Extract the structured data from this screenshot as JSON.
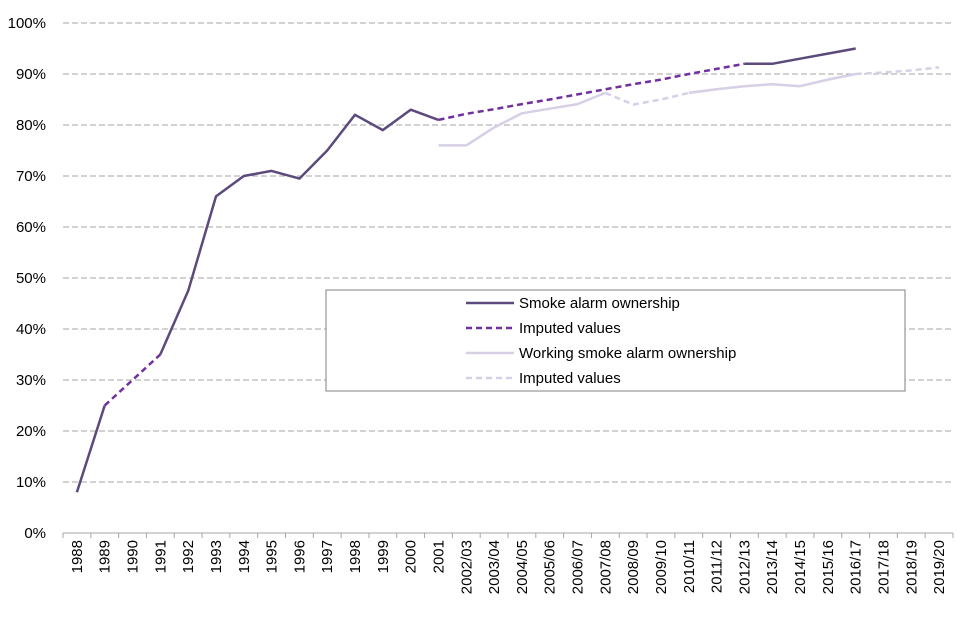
{
  "chart_data": {
    "type": "line",
    "title": "",
    "xlabel": "",
    "ylabel": "",
    "ylim": [
      0,
      100
    ],
    "y_ticks": [
      "0%",
      "10%",
      "20%",
      "30%",
      "40%",
      "50%",
      "60%",
      "70%",
      "80%",
      "90%",
      "100%"
    ],
    "gridlines": "horizontal dashed",
    "categories": [
      "1988",
      "1989",
      "1990",
      "1991",
      "1992",
      "1993",
      "1994",
      "1995",
      "1996",
      "1997",
      "1998",
      "1999",
      "2000",
      "2001",
      "2002/03",
      "2003/04",
      "2004/05",
      "2005/06",
      "2006/07",
      "2007/08",
      "2008/09",
      "2009/10",
      "2010/11",
      "2011/12",
      "2012/13",
      "2013/14",
      "2014/15",
      "2015/16",
      "2016/17",
      "2017/18",
      "2018/19",
      "2019/20"
    ],
    "legend_position": "center-right",
    "series": [
      {
        "name": "Smoke alarm ownership",
        "style": "solid",
        "color": "#5b4a7b",
        "values": [
          8,
          25,
          null,
          35,
          47.5,
          66,
          70,
          71,
          69.5,
          75,
          82,
          79,
          83,
          81,
          null,
          null,
          null,
          null,
          null,
          null,
          null,
          null,
          null,
          null,
          92,
          92,
          93,
          94,
          95,
          null,
          null,
          null
        ]
      },
      {
        "name": "Imputed values",
        "style": "dashed",
        "color": "#7030a0",
        "values": [
          null,
          25,
          30,
          35,
          null,
          null,
          null,
          null,
          null,
          null,
          null,
          null,
          null,
          81,
          82.2,
          83.1,
          84.1,
          85,
          86,
          87,
          88,
          88.9,
          90,
          91,
          92,
          null,
          null,
          null,
          null,
          null,
          null,
          null
        ]
      },
      {
        "name": "Working smoke alarm ownership",
        "style": "solid",
        "color": "#d6cfe6",
        "values": [
          null,
          null,
          null,
          null,
          null,
          null,
          null,
          null,
          null,
          null,
          null,
          null,
          null,
          76,
          76,
          79.5,
          82.3,
          83.2,
          84.1,
          86.3,
          null,
          null,
          86.3,
          87,
          87.6,
          88,
          87.6,
          88.9,
          90,
          null,
          null,
          null
        ]
      },
      {
        "name": "Imputed values",
        "style": "dashed",
        "color": "#d6cfe6",
        "values": [
          null,
          null,
          null,
          null,
          null,
          null,
          null,
          null,
          null,
          null,
          null,
          null,
          null,
          null,
          null,
          null,
          null,
          null,
          null,
          86.3,
          84,
          85,
          86.3,
          null,
          null,
          null,
          null,
          null,
          90,
          90.3,
          90.7,
          91.3
        ]
      }
    ]
  }
}
